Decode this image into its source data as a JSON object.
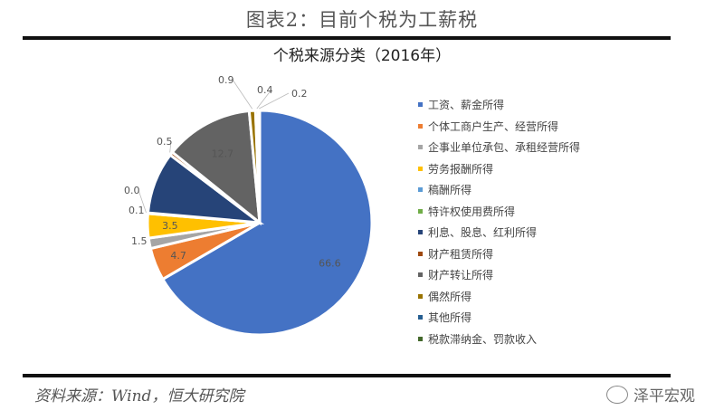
{
  "figure_title": "图表2：目前个税为工薪税",
  "source": "资料来源：Wind，恒大研究院",
  "watermark": "泽平宏观",
  "chart_data": {
    "type": "pie",
    "title": "个税来源分类（2016年）",
    "legend_position": "right",
    "start": "top, clockwise",
    "slices": [
      {
        "name": "工资、薪金所得",
        "value": 66.6,
        "label": "66.6",
        "color": "#4472c4"
      },
      {
        "name": "个体工商户生产、经营所得",
        "value": 4.7,
        "label": "4.7",
        "color": "#ed7d31"
      },
      {
        "name": "企事业单位承包、承租经营所得",
        "value": 1.5,
        "label": "1.5",
        "color": "#a5a5a5"
      },
      {
        "name": "劳务报酬所得",
        "value": 3.5,
        "label": "3.5",
        "color": "#ffc000"
      },
      {
        "name": "稿酬所得",
        "value": 0.1,
        "label": "0.1",
        "color": "#5b9bd5"
      },
      {
        "name": "特许权使用费所得",
        "value": 0.0,
        "label": "0.0",
        "color": "#70ad47"
      },
      {
        "name": "利息、股息、红利所得",
        "value": 8.9,
        "label": "",
        "color": "#264478"
      },
      {
        "name": "财产租赁所得",
        "value": 0.5,
        "label": "0.5",
        "color": "#9e480e"
      },
      {
        "name": "财产转让所得",
        "value": 12.7,
        "label": "12.7",
        "color": "#636363"
      },
      {
        "name": "偶然所得",
        "value": 0.9,
        "label": "0.9",
        "color": "#997300"
      },
      {
        "name": "其他所得",
        "value": 0.4,
        "label": "0.4",
        "color": "#255e91"
      },
      {
        "name": "税款滞纳金、罚款收入",
        "value": 0.2,
        "label": "0.2",
        "color": "#43682b"
      }
    ]
  }
}
